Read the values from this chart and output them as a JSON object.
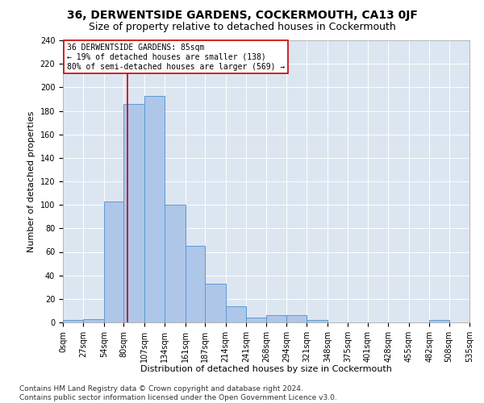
{
  "title": "36, DERWENTSIDE GARDENS, COCKERMOUTH, CA13 0JF",
  "subtitle": "Size of property relative to detached houses in Cockermouth",
  "xlabel": "Distribution of detached houses by size in Cockermouth",
  "ylabel": "Number of detached properties",
  "bin_edges": [
    0,
    27,
    54,
    80,
    107,
    134,
    161,
    187,
    214,
    241,
    268,
    294,
    321,
    348,
    375,
    401,
    428,
    455,
    482,
    508,
    535
  ],
  "bar_heights": [
    2,
    3,
    103,
    186,
    193,
    100,
    65,
    33,
    14,
    4,
    6,
    6,
    2,
    0,
    0,
    0,
    0,
    0,
    2,
    0
  ],
  "bar_color": "#aec6e8",
  "bar_edge_color": "#5b9bd5",
  "property_size": 85,
  "red_line_color": "#cc0000",
  "annotation_line1": "36 DERWENTSIDE GARDENS: 85sqm",
  "annotation_line2": "← 19% of detached houses are smaller (138)",
  "annotation_line3": "80% of semi-detached houses are larger (569) →",
  "annotation_box_facecolor": "#ffffff",
  "annotation_box_edgecolor": "#cc0000",
  "ylim_max": 240,
  "yticks": [
    0,
    20,
    40,
    60,
    80,
    100,
    120,
    140,
    160,
    180,
    200,
    220,
    240
  ],
  "axes_facecolor": "#dce6f1",
  "grid_color": "#ffffff",
  "footer_line1": "Contains HM Land Registry data © Crown copyright and database right 2024.",
  "footer_line2": "Contains public sector information licensed under the Open Government Licence v3.0.",
  "title_fontsize": 10,
  "subtitle_fontsize": 9,
  "ylabel_fontsize": 8,
  "xlabel_fontsize": 8,
  "tick_fontsize": 7,
  "annotation_fontsize": 7,
  "footer_fontsize": 6.5
}
